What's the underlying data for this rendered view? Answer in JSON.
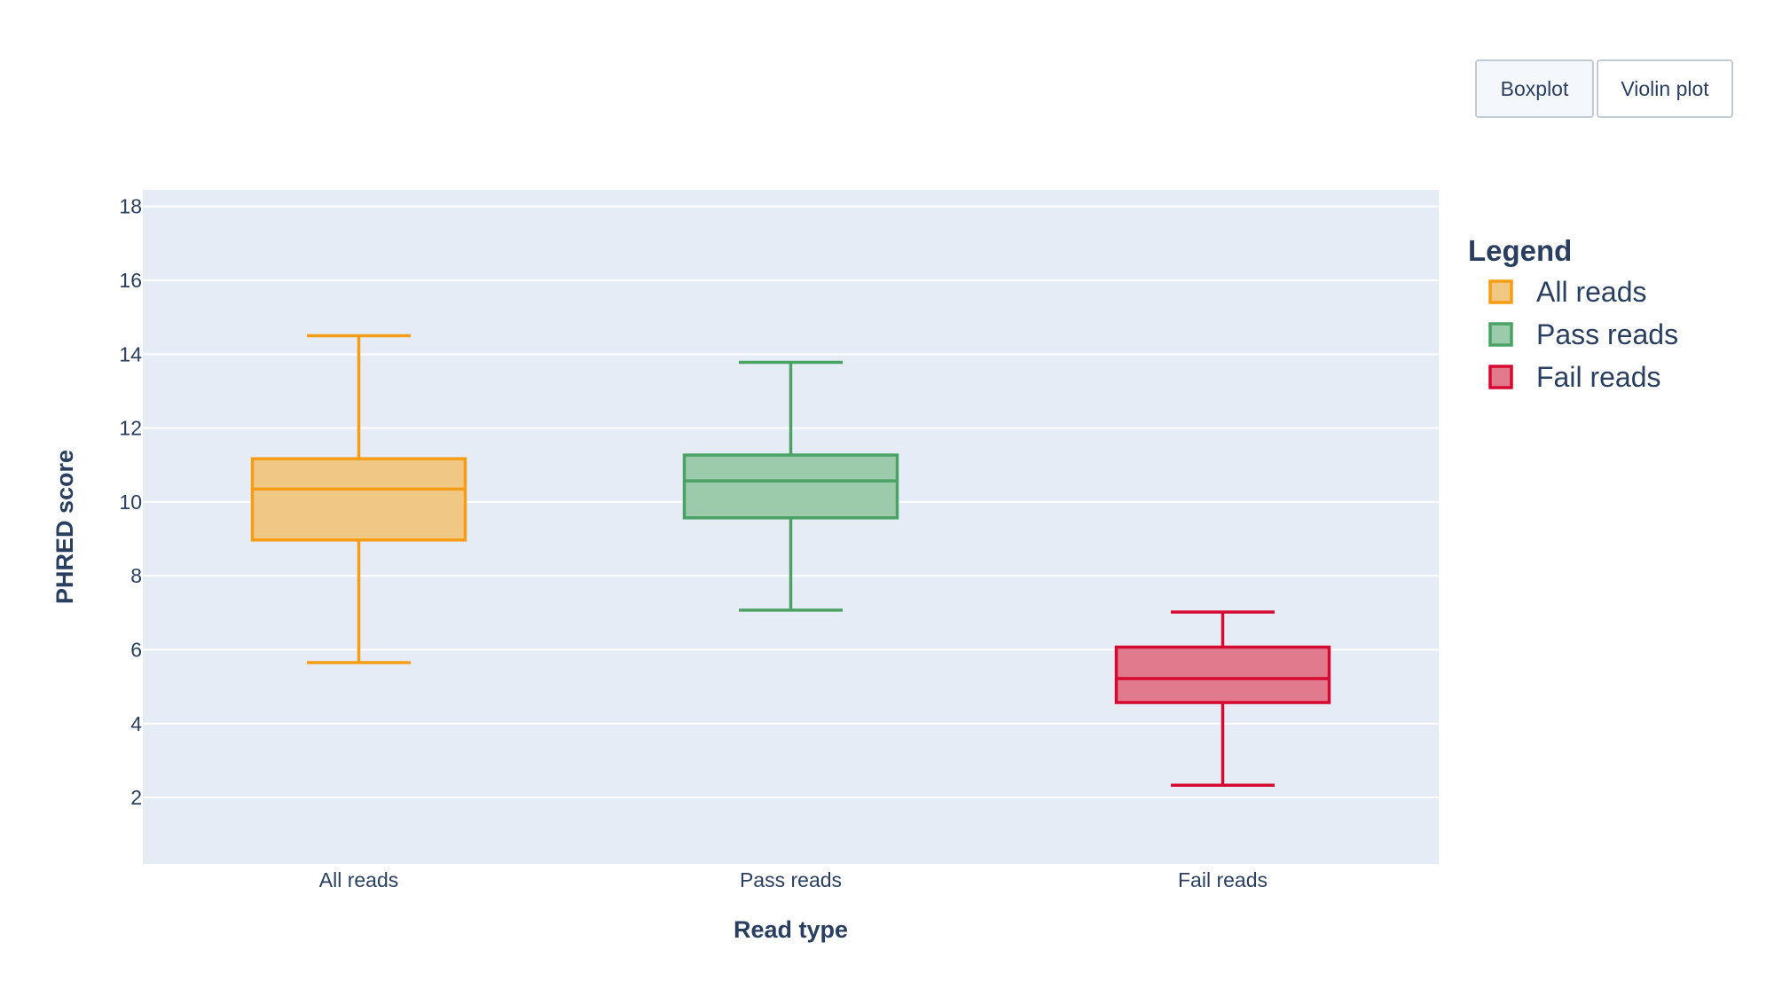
{
  "buttons": [
    {
      "label": "Boxplot",
      "active": true
    },
    {
      "label": "Violin plot",
      "active": false
    }
  ],
  "chart_data": {
    "type": "box",
    "xlabel": "Read type",
    "ylabel": "PHRED score",
    "ylim": [
      0.2,
      18.45
    ],
    "yticks": [
      2,
      4,
      6,
      8,
      10,
      12,
      14,
      16,
      18
    ],
    "grid": true,
    "legend": {
      "title": "Legend",
      "placement": "right"
    },
    "plot_bg": "#e5ecf6",
    "categories": [
      "All reads",
      "Pass reads",
      "Fail reads"
    ],
    "series": [
      {
        "name": "All reads",
        "color": "#f59d16",
        "fill": "#f0c883",
        "min": 5.65,
        "q1": 8.97,
        "median": 10.35,
        "q3": 11.17,
        "max": 14.5
      },
      {
        "name": "Pass reads",
        "color": "#4aa365",
        "fill": "#9ccbab",
        "min": 7.07,
        "q1": 9.57,
        "median": 10.57,
        "q3": 11.27,
        "max": 13.78
      },
      {
        "name": "Fail reads",
        "color": "#d60a31",
        "fill": "#e27a8e",
        "min": 2.33,
        "q1": 4.57,
        "median": 5.22,
        "q3": 6.07,
        "max": 7.02
      }
    ]
  }
}
